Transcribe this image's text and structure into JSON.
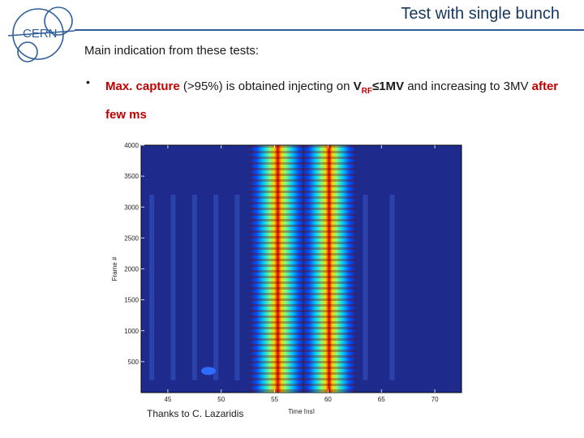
{
  "slide": {
    "title": "Test with single bunch",
    "logo_text": "CERN",
    "intro": "Main indication from these tests:",
    "bullet_symbol": "•",
    "bullet": {
      "part1": "Max. capture",
      "part2": " (>95%) is obtained injecting on ",
      "v": "V",
      "v_sub": "RF",
      "part3": "≤1MV",
      "part4": " and increasing to 3MV  ",
      "part5": "after few ms"
    },
    "credit": "Thanks to C. Lazaridis"
  },
  "colors": {
    "title": "#17375e",
    "accent_red": "#c00000",
    "rule": "#2f5f99",
    "plot_bg": "#1e2b8c"
  },
  "chart_data": {
    "type": "heatmap",
    "title": "",
    "xlabel": "Time [ns]",
    "ylabel": "Frame #",
    "xlim": [
      42.5,
      72.5
    ],
    "ylim": [
      0,
      4000
    ],
    "x_ticks": [
      45,
      50,
      55,
      60,
      65,
      70
    ],
    "y_ticks": [
      500,
      1000,
      1500,
      2000,
      2500,
      3000,
      3500,
      4000
    ],
    "colormap": "jet",
    "bands": [
      {
        "center_ns": 55.3,
        "width_ns": 2.6
      },
      {
        "center_ns": 60.1,
        "width_ns": 2.5
      }
    ],
    "faint_satellites_ns": [
      43.5,
      45.5,
      47.5,
      49.5,
      51.5,
      63.5,
      66.0
    ]
  }
}
